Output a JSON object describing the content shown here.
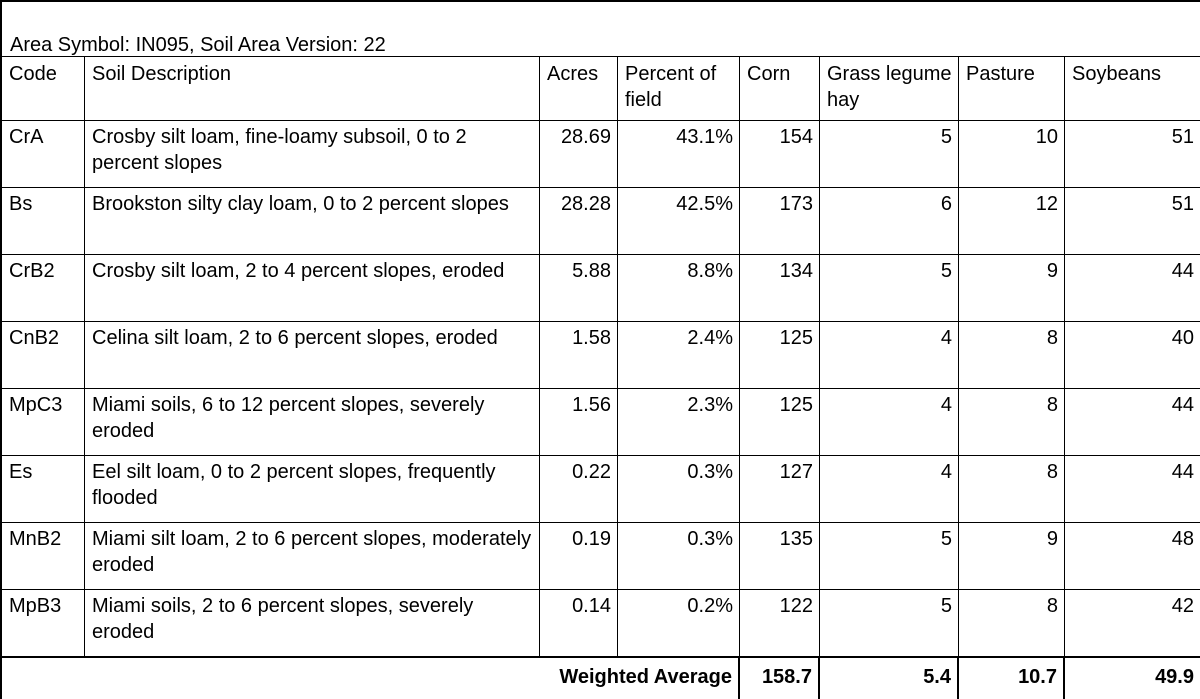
{
  "area_title": "Area Symbol: IN095, Soil Area Version: 22",
  "headers": {
    "code": "Code",
    "description": "Soil Description",
    "acres": "Acres",
    "percent": "Percent of field",
    "corn": "Corn",
    "hay": "Grass legume hay",
    "pasture": "Pasture",
    "soybeans": "Soybeans"
  },
  "rows": [
    {
      "code": "CrA",
      "description": "Crosby silt loam, fine-loamy subsoil, 0 to 2 percent slopes",
      "acres": "28.69",
      "percent": "43.1%",
      "corn": "154",
      "hay": "5",
      "pasture": "10",
      "soybeans": "51"
    },
    {
      "code": "Bs",
      "description": "Brookston silty clay loam, 0 to 2 percent slopes",
      "acres": "28.28",
      "percent": "42.5%",
      "corn": "173",
      "hay": "6",
      "pasture": "12",
      "soybeans": "51"
    },
    {
      "code": "CrB2",
      "description": "Crosby silt loam, 2 to 4 percent slopes, eroded",
      "acres": "5.88",
      "percent": "8.8%",
      "corn": "134",
      "hay": "5",
      "pasture": "9",
      "soybeans": "44"
    },
    {
      "code": "CnB2",
      "description": "Celina silt loam, 2 to 6 percent slopes, eroded",
      "acres": "1.58",
      "percent": "2.4%",
      "corn": "125",
      "hay": "4",
      "pasture": "8",
      "soybeans": "40"
    },
    {
      "code": "MpC3",
      "description": "Miami soils, 6 to 12 percent slopes, severely eroded",
      "acres": "1.56",
      "percent": "2.3%",
      "corn": "125",
      "hay": "4",
      "pasture": "8",
      "soybeans": "44"
    },
    {
      "code": "Es",
      "description": "Eel silt loam, 0 to 2 percent slopes, frequently flooded",
      "acres": "0.22",
      "percent": "0.3%",
      "corn": "127",
      "hay": "4",
      "pasture": "8",
      "soybeans": "44"
    },
    {
      "code": "MnB2",
      "description": "Miami silt loam, 2 to 6 percent slopes, moderately eroded",
      "acres": "0.19",
      "percent": "0.3%",
      "corn": "135",
      "hay": "5",
      "pasture": "9",
      "soybeans": "48"
    },
    {
      "code": "MpB3",
      "description": "Miami soils, 2 to 6 percent slopes, severely eroded",
      "acres": "0.14",
      "percent": "0.2%",
      "corn": "122",
      "hay": "5",
      "pasture": "8",
      "soybeans": "42"
    }
  ],
  "footer": {
    "label": "Weighted Average",
    "corn": "158.7",
    "hay": "5.4",
    "pasture": "10.7",
    "soybeans": "49.9"
  }
}
